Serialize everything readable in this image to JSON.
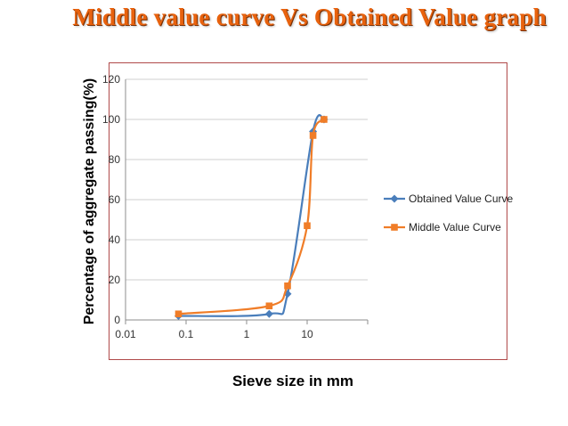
{
  "slide": {
    "title": "Middle value curve Vs Obtained Value graph"
  },
  "chart_data": {
    "type": "line",
    "xlabel": "Sieve size in mm",
    "ylabel": "Percentage  of aggregate passing(%)",
    "x_scale": "log",
    "xlim": [
      0.01,
      100
    ],
    "ylim": [
      0,
      120
    ],
    "x_ticks": [
      0.01,
      0.1,
      1,
      10
    ],
    "x_tick_labels": [
      "0.01",
      "0.1",
      "1",
      "10"
    ],
    "y_ticks": [
      0,
      20,
      40,
      60,
      80,
      100,
      120
    ],
    "y_tick_labels": [
      "0",
      "20",
      "40",
      "60",
      "80",
      "100",
      "120"
    ],
    "grid": "horizontal",
    "legend_position": "right",
    "series": [
      {
        "name": "Obtained Value Curve",
        "color": "#4a7ebb",
        "marker": "diamond",
        "points": [
          [
            0.075,
            2
          ],
          [
            2.36,
            3
          ],
          [
            4.75,
            13
          ],
          [
            12.5,
            94
          ],
          [
            19,
            100
          ]
        ]
      },
      {
        "name": "Middle Value Curve",
        "color": "#f07d28",
        "marker": "square",
        "points": [
          [
            0.075,
            3
          ],
          [
            2.36,
            7
          ],
          [
            4.75,
            17
          ],
          [
            10,
            47
          ],
          [
            12.5,
            92
          ],
          [
            19,
            100
          ]
        ]
      }
    ]
  }
}
